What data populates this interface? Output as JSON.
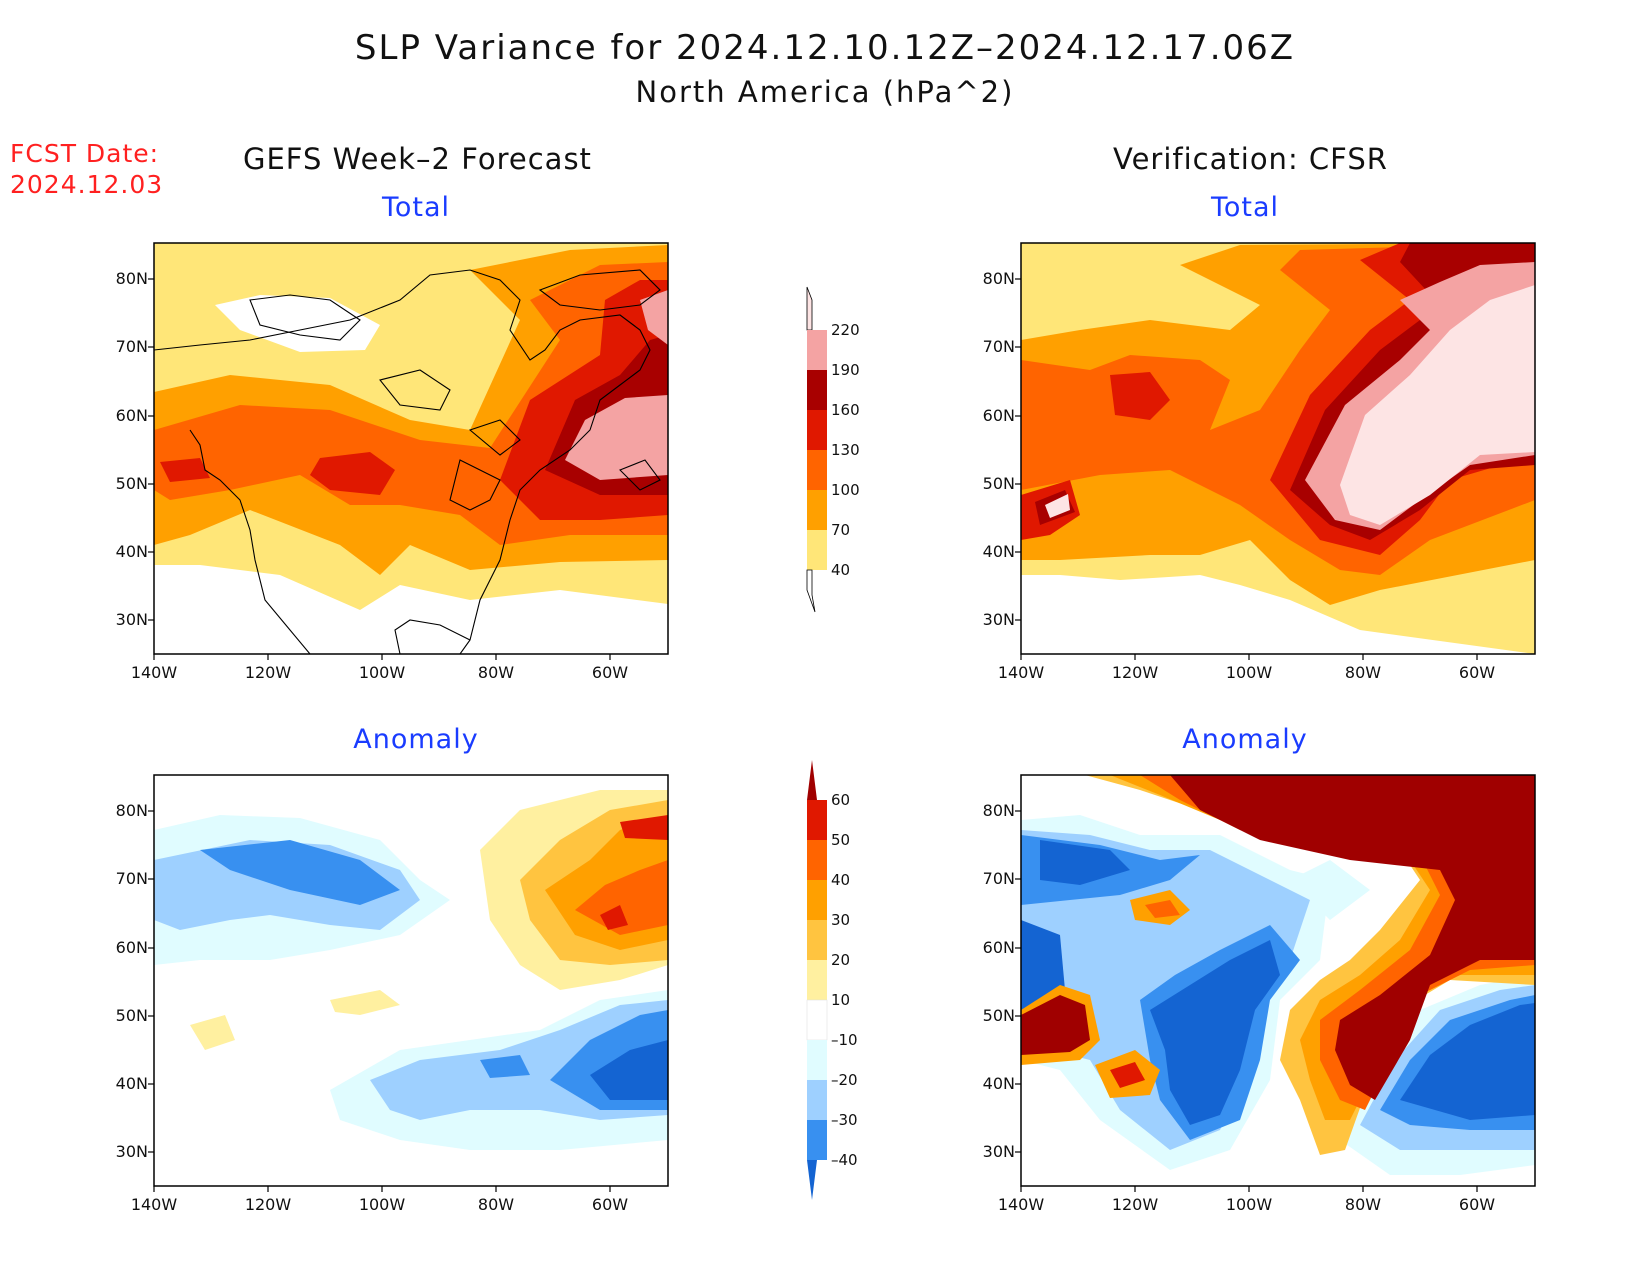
{
  "title": {
    "line1": "SLP Variance for 2024.12.10.12Z–2024.12.17.06Z",
    "line2": "North America (hPa^2)"
  },
  "fcst_date": {
    "label": "FCST Date:",
    "value": "2024.12.03"
  },
  "columns": {
    "left": "GEFS Week–2 Forecast",
    "right": "Verification: CFSR"
  },
  "panels": {
    "fcst_total": "Total",
    "verif_total": "Total",
    "fcst_anom": "Anomaly",
    "verif_anom": "Anomaly"
  },
  "axes": {
    "lat_ticks": [
      "80N",
      "70N",
      "60N",
      "50N",
      "40N",
      "30N"
    ],
    "lon_ticks": [
      "140W",
      "120W",
      "100W",
      "80W",
      "60W"
    ]
  },
  "colorbars": {
    "total": {
      "labels": [
        "220",
        "190",
        "160",
        "130",
        "100",
        "70",
        "40"
      ],
      "colors": [
        "#fde4e4",
        "#f4a3a3",
        "#a80000",
        "#e01800",
        "#ff6400",
        "#ffa000",
        "#ffe678",
        "#ffffff"
      ]
    },
    "anomaly": {
      "labels": [
        "60",
        "50",
        "40",
        "30",
        "20",
        "10",
        "–10",
        "–20",
        "–30",
        "–40"
      ],
      "colors": [
        "#a00000",
        "#e01800",
        "#ff6400",
        "#ffa000",
        "#ffc440",
        "#fff0a0",
        "#ffffff",
        "#e0fcff",
        "#9ed0ff",
        "#3890f0",
        "#1464d2"
      ]
    }
  },
  "colors": {
    "title_text": "#111111",
    "panel_title": "#1a3cff",
    "fcst_date": "#ff2020"
  }
}
